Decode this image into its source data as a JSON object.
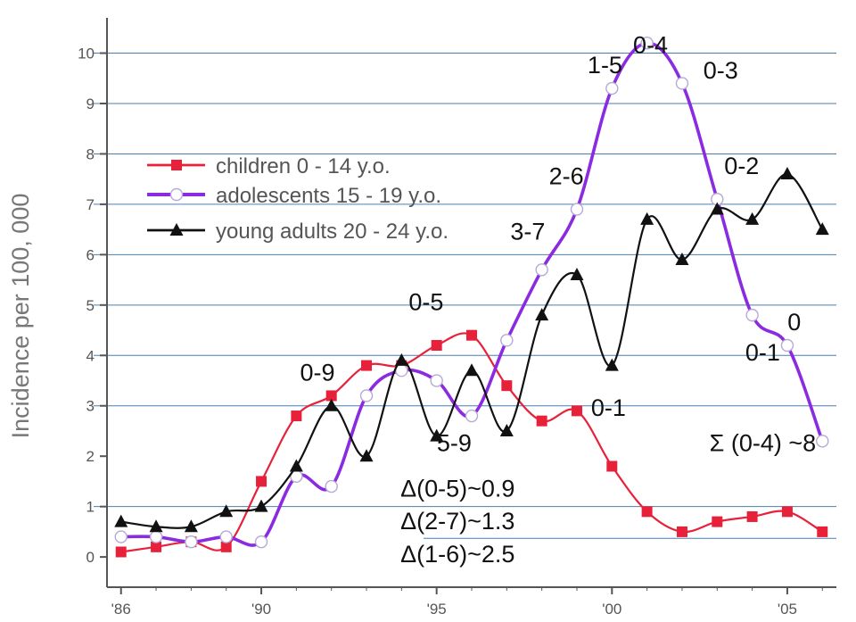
{
  "chart_data": {
    "type": "line",
    "title": "",
    "xlabel": "",
    "ylabel": "Incidence per 100, 000",
    "xlim": [
      1985.6,
      2006.4
    ],
    "ylim": [
      -0.6,
      10.7
    ],
    "x_ticks": [
      {
        "value": 1986,
        "label": "'86"
      },
      {
        "value": 1990,
        "label": "'90"
      },
      {
        "value": 1995,
        "label": "'95"
      },
      {
        "value": 2000,
        "label": "'00"
      },
      {
        "value": 2005,
        "label": "'05"
      }
    ],
    "y_ticks": [
      0,
      1,
      2,
      3,
      4,
      5,
      6,
      7,
      8,
      9,
      10
    ],
    "gridlines": [
      1,
      3,
      4,
      5,
      6,
      7,
      8,
      9,
      10
    ],
    "series": [
      {
        "name": "children 0 - 14 y.o.",
        "color": "#e8213a",
        "marker": "square",
        "x": [
          1986,
          1987,
          1988,
          1989,
          1990,
          1991,
          1992,
          1993,
          1994,
          1995,
          1996,
          1997,
          1998,
          1999,
          2000,
          2001,
          2002,
          2003,
          2004,
          2005,
          2006
        ],
        "values": [
          0.1,
          0.2,
          0.3,
          0.2,
          1.5,
          2.8,
          3.2,
          3.8,
          3.8,
          4.2,
          4.4,
          3.4,
          2.7,
          2.9,
          1.8,
          0.9,
          0.5,
          0.7,
          0.8,
          0.9,
          0.5
        ]
      },
      {
        "name": "adolescents 15 - 19 y.o.",
        "color": "#8a2be2",
        "marker": "circle",
        "x": [
          1986,
          1987,
          1988,
          1989,
          1990,
          1991,
          1992,
          1993,
          1994,
          1995,
          1996,
          1997,
          1998,
          1999,
          2000,
          2001,
          2002,
          2003,
          2004,
          2005,
          2006
        ],
        "values": [
          0.4,
          0.4,
          0.3,
          0.4,
          0.3,
          1.6,
          1.4,
          3.2,
          3.7,
          3.5,
          2.8,
          4.3,
          5.7,
          6.9,
          9.3,
          10.2,
          9.4,
          7.1,
          4.8,
          4.2,
          2.3
        ]
      },
      {
        "name": "young adults 20 - 24 y.o.",
        "color": "#111111",
        "marker": "triangle",
        "x": [
          1986,
          1987,
          1988,
          1989,
          1990,
          1991,
          1992,
          1993,
          1994,
          1995,
          1996,
          1997,
          1998,
          1999,
          2000,
          2001,
          2002,
          2003,
          2004,
          2005,
          2006
        ],
        "values": [
          0.7,
          0.6,
          0.6,
          0.9,
          1.0,
          1.8,
          3.0,
          2.0,
          3.9,
          2.4,
          3.7,
          2.5,
          4.8,
          5.6,
          3.8,
          6.7,
          5.9,
          6.9,
          6.7,
          7.6,
          6.5
        ]
      }
    ],
    "annotations": [
      {
        "text": "1-5",
        "x": 1999.8,
        "y": 9.6
      },
      {
        "text": "0-4",
        "x": 2001.1,
        "y": 10.0
      },
      {
        "text": "0-3",
        "x": 2003.1,
        "y": 9.5
      },
      {
        "text": "2-6",
        "x": 1998.7,
        "y": 7.4
      },
      {
        "text": "0-2",
        "x": 2003.7,
        "y": 7.6
      },
      {
        "text": "3-7",
        "x": 1997.6,
        "y": 6.3
      },
      {
        "text": "0-5",
        "x": 1994.7,
        "y": 4.9
      },
      {
        "text": "0",
        "x": 2005.2,
        "y": 4.5
      },
      {
        "text": "0-1",
        "x": 2004.3,
        "y": 3.9
      },
      {
        "text": "0-9",
        "x": 1991.6,
        "y": 3.5
      },
      {
        "text": "0-1",
        "x": 1999.9,
        "y": 2.8
      },
      {
        "text": "5-9",
        "x": 1995.5,
        "y": 2.1
      },
      {
        "text": "Σ (0-4) ~8",
        "x": 2004.3,
        "y": 2.1
      },
      {
        "text": "Δ(0-5)~0.9",
        "x": 1995.6,
        "y": 1.2
      },
      {
        "text": "Δ(2-7)~1.3",
        "x": 1995.6,
        "y": 0.55
      },
      {
        "text": "Δ(1-6)~2.5",
        "x": 1995.6,
        "y": -0.1
      }
    ]
  }
}
